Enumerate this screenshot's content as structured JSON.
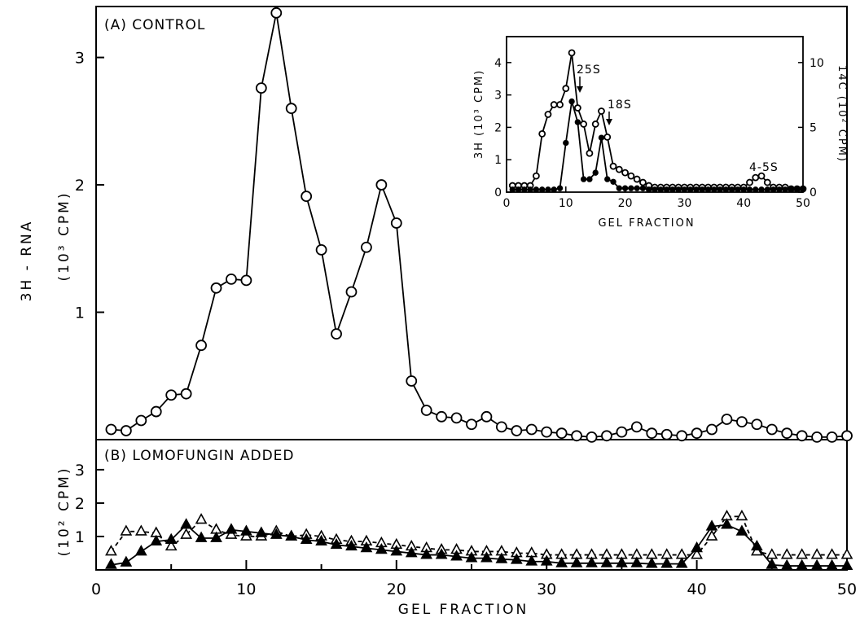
{
  "chart_data": [
    {
      "panel": "A",
      "type": "line",
      "label": "(A) CONTROL",
      "ylabel_main": "3H - RNA",
      "ylabel_unit": "(10³ CPM)",
      "xlim": [
        0,
        50
      ],
      "ylim": [
        0,
        3.4
      ],
      "yticks": [
        "1",
        "2",
        "3"
      ],
      "ytick_values": [
        1,
        2,
        3
      ],
      "series": [
        {
          "marker": "open-circle",
          "x": [
            1,
            2,
            3,
            4,
            5,
            6,
            7,
            8,
            9,
            10,
            11,
            12,
            13,
            14,
            15,
            16,
            17,
            18,
            19,
            20,
            21,
            22,
            23,
            24,
            25,
            26,
            27,
            28,
            29,
            30,
            31,
            32,
            33,
            34,
            35,
            36,
            37,
            38,
            39,
            40,
            41,
            42,
            43,
            44,
            45,
            46,
            47,
            48,
            49,
            50
          ],
          "y": [
            0.08,
            0.07,
            0.15,
            0.22,
            0.35,
            0.36,
            0.74,
            1.19,
            1.26,
            1.25,
            2.76,
            3.35,
            2.6,
            1.91,
            1.49,
            0.83,
            1.16,
            1.51,
            2.0,
            1.7,
            0.46,
            0.23,
            0.18,
            0.17,
            0.12,
            0.18,
            0.1,
            0.07,
            0.08,
            0.06,
            0.05,
            0.03,
            0.02,
            0.03,
            0.06,
            0.1,
            0.05,
            0.04,
            0.03,
            0.05,
            0.08,
            0.16,
            0.14,
            0.12,
            0.08,
            0.05,
            0.03,
            0.02,
            0.02,
            0.03
          ]
        }
      ]
    },
    {
      "panel": "B",
      "type": "line",
      "label": "(B) LOMOFUNGIN  ADDED",
      "ylabel_unit": "(10² CPM)",
      "xlim": [
        0,
        50
      ],
      "ylim": [
        0,
        3.9
      ],
      "yticks": [
        "1",
        "2",
        "3"
      ],
      "ytick_values": [
        1,
        2,
        3
      ],
      "xticks": [
        "0",
        "10",
        "20",
        "30",
        "40",
        "50"
      ],
      "xtick_values": [
        0,
        10,
        20,
        30,
        40,
        50
      ],
      "xlabel": "GEL  FRACTION",
      "series": [
        {
          "marker": "filled-triangle",
          "line": "solid",
          "x": [
            1,
            2,
            3,
            4,
            5,
            6,
            7,
            8,
            9,
            10,
            11,
            12,
            13,
            14,
            15,
            16,
            17,
            18,
            19,
            20,
            21,
            22,
            23,
            24,
            25,
            26,
            27,
            28,
            29,
            30,
            31,
            32,
            33,
            34,
            35,
            36,
            37,
            38,
            39,
            40,
            41,
            42,
            43,
            44,
            45,
            46,
            47,
            48,
            49,
            50
          ],
          "y": [
            0.15,
            0.22,
            0.55,
            0.85,
            0.9,
            1.35,
            0.95,
            0.95,
            1.2,
            1.15,
            1.1,
            1.05,
            1.0,
            0.9,
            0.85,
            0.75,
            0.7,
            0.65,
            0.6,
            0.55,
            0.5,
            0.45,
            0.45,
            0.4,
            0.35,
            0.35,
            0.32,
            0.3,
            0.25,
            0.25,
            0.2,
            0.2,
            0.2,
            0.2,
            0.2,
            0.2,
            0.18,
            0.18,
            0.18,
            0.65,
            1.3,
            1.35,
            1.15,
            0.7,
            0.15,
            0.12,
            0.12,
            0.12,
            0.12,
            0.12
          ]
        },
        {
          "marker": "open-triangle",
          "line": "dashed",
          "x": [
            1,
            2,
            3,
            4,
            5,
            6,
            7,
            8,
            9,
            10,
            11,
            12,
            13,
            14,
            15,
            16,
            17,
            18,
            19,
            20,
            21,
            22,
            23,
            24,
            25,
            26,
            27,
            28,
            29,
            30,
            31,
            32,
            33,
            34,
            35,
            36,
            37,
            38,
            39,
            40,
            41,
            42,
            43,
            44,
            45,
            46,
            47,
            48,
            49,
            50
          ],
          "y": [
            0.55,
            1.15,
            1.15,
            1.1,
            0.7,
            1.05,
            1.5,
            1.2,
            1.05,
            1.0,
            1.0,
            1.15,
            1.0,
            1.05,
            1.0,
            0.9,
            0.85,
            0.85,
            0.8,
            0.75,
            0.7,
            0.65,
            0.6,
            0.6,
            0.55,
            0.55,
            0.55,
            0.5,
            0.5,
            0.45,
            0.45,
            0.45,
            0.45,
            0.45,
            0.45,
            0.45,
            0.45,
            0.45,
            0.45,
            0.45,
            1.0,
            1.6,
            1.6,
            0.55,
            0.45,
            0.45,
            0.45,
            0.45,
            0.45,
            0.45
          ]
        }
      ]
    },
    {
      "panel": "inset",
      "type": "line",
      "xlabel": "GEL  FRACTION",
      "ylabel_left": "3H (10³ CPM)",
      "ylabel_right": "14C (10² CPM)",
      "xlim": [
        0,
        50
      ],
      "ylim_left": [
        0,
        4.8
      ],
      "ylim_right": [
        0,
        12
      ],
      "xticks": [
        "0",
        "10",
        "20",
        "30",
        "40",
        "50"
      ],
      "xtick_values": [
        0,
        10,
        20,
        30,
        40,
        50
      ],
      "yticks_left": [
        "0",
        "1",
        "2",
        "3",
        "4"
      ],
      "ytick_left_values": [
        0,
        1,
        2,
        3,
        4
      ],
      "yticks_right": [
        "0",
        "5",
        "10"
      ],
      "ytick_right_values": [
        0,
        5,
        10
      ],
      "annotations": [
        {
          "text": "25S",
          "x": 12
        },
        {
          "text": "18S",
          "x": 17
        },
        {
          "text": "4-5S",
          "x": 43
        }
      ],
      "series": [
        {
          "marker": "open-circle",
          "axis": "left",
          "x": [
            1,
            2,
            3,
            4,
            5,
            6,
            7,
            8,
            9,
            10,
            11,
            12,
            13,
            14,
            15,
            16,
            17,
            18,
            19,
            20,
            21,
            22,
            23,
            24,
            25,
            26,
            27,
            28,
            29,
            30,
            31,
            32,
            33,
            34,
            35,
            36,
            37,
            38,
            39,
            40,
            41,
            42,
            43,
            44,
            45,
            46,
            47,
            48,
            49,
            50
          ],
          "y": [
            0.2,
            0.2,
            0.2,
            0.2,
            0.5,
            1.8,
            2.4,
            2.7,
            2.7,
            3.2,
            4.3,
            2.6,
            2.1,
            1.2,
            2.1,
            2.5,
            1.7,
            0.8,
            0.7,
            0.6,
            0.5,
            0.4,
            0.3,
            0.2,
            0.15,
            0.15,
            0.15,
            0.15,
            0.15,
            0.15,
            0.15,
            0.15,
            0.15,
            0.15,
            0.15,
            0.15,
            0.15,
            0.15,
            0.15,
            0.15,
            0.3,
            0.45,
            0.5,
            0.3,
            0.15,
            0.15,
            0.15,
            0.1,
            0.1,
            0.1
          ]
        },
        {
          "marker": "filled-circle",
          "axis": "right",
          "x": [
            1,
            2,
            3,
            4,
            5,
            6,
            7,
            8,
            9,
            10,
            11,
            12,
            13,
            14,
            15,
            16,
            17,
            18,
            19,
            20,
            21,
            22,
            23,
            24,
            25,
            26,
            27,
            28,
            29,
            30,
            31,
            32,
            33,
            34,
            35,
            36,
            37,
            38,
            39,
            40,
            41,
            42,
            43,
            44,
            45,
            46,
            47,
            48,
            49,
            50
          ],
          "y": [
            0.2,
            0.2,
            0.2,
            0.2,
            0.2,
            0.2,
            0.2,
            0.2,
            0.3,
            3.8,
            7.0,
            5.4,
            1.0,
            1.0,
            1.5,
            4.2,
            1.0,
            0.8,
            0.3,
            0.3,
            0.3,
            0.3,
            0.3,
            0.2,
            0.2,
            0.2,
            0.2,
            0.2,
            0.2,
            0.2,
            0.2,
            0.2,
            0.2,
            0.2,
            0.2,
            0.2,
            0.2,
            0.2,
            0.2,
            0.2,
            0.2,
            0.2,
            0.2,
            0.2,
            0.2,
            0.2,
            0.2,
            0.2,
            0.2,
            0.2
          ]
        }
      ]
    }
  ]
}
